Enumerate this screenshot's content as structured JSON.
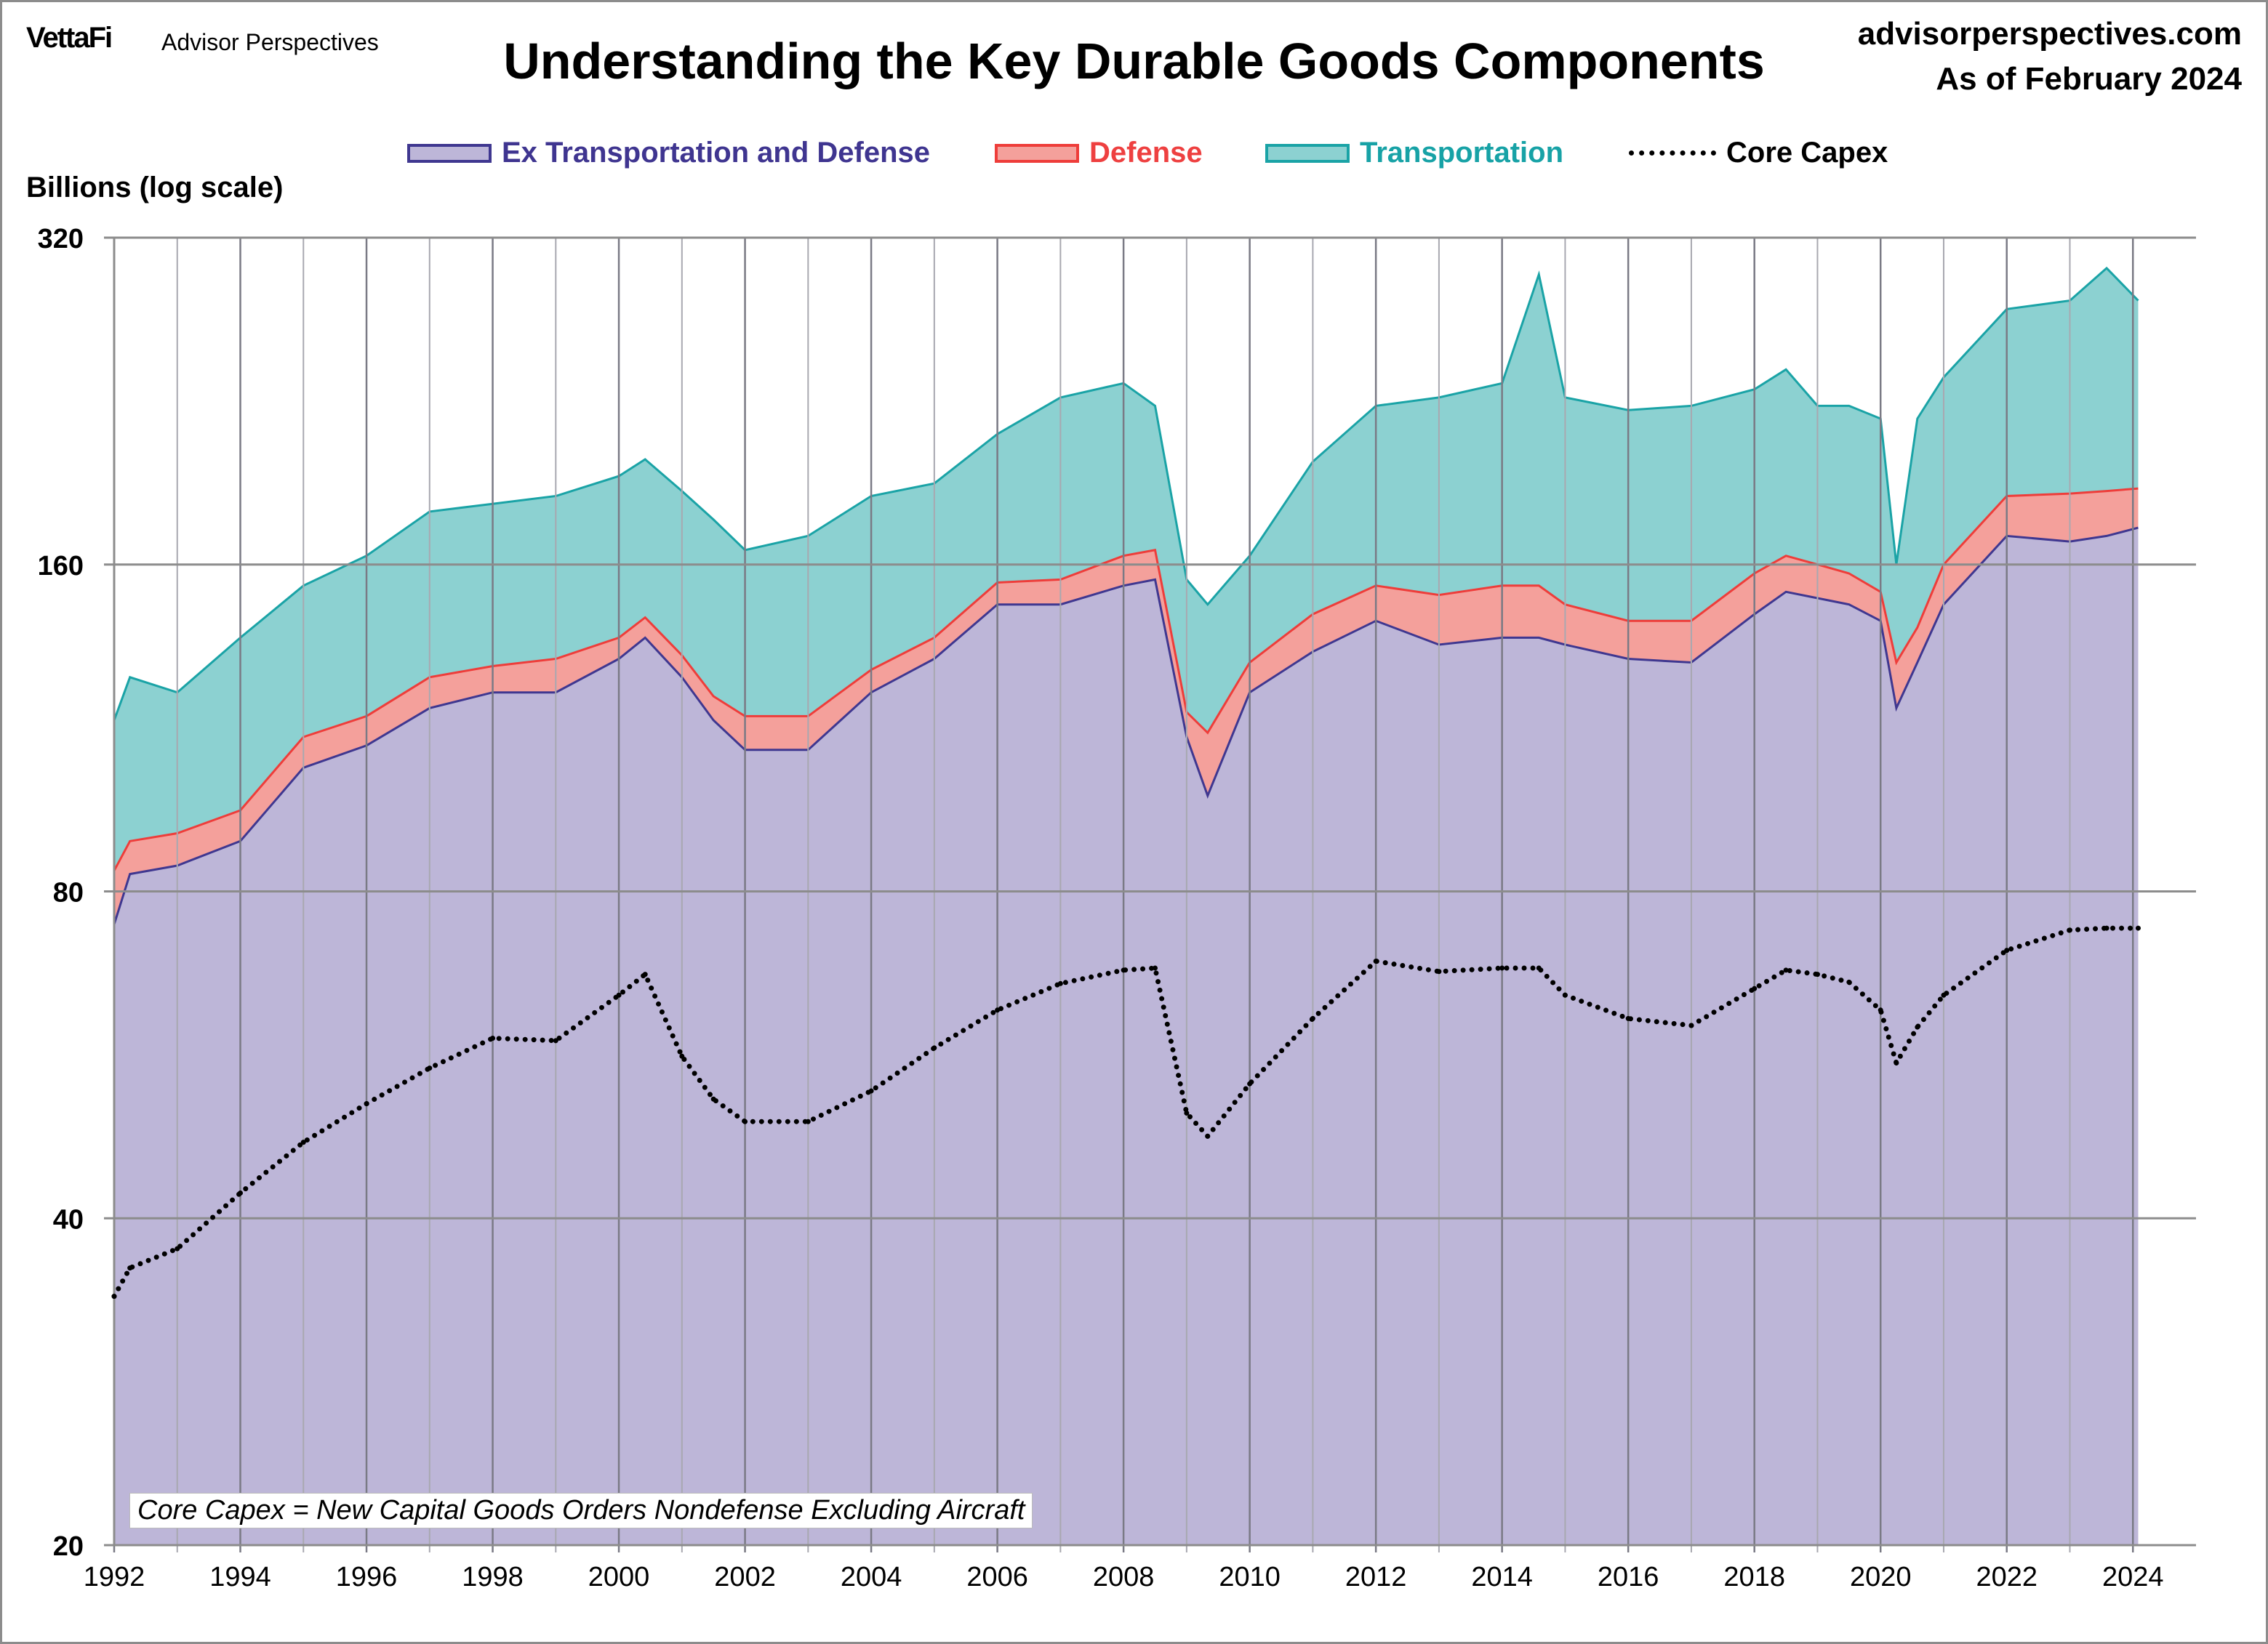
{
  "header": {
    "logo": "VettaFi",
    "logo_sub": "Advisor Perspectives",
    "title": "Understanding the Key Durable Goods Components",
    "site": "advisorperspectives.com",
    "as_of": "As of February 2024"
  },
  "note": "Core Capex = New Capital Goods Orders Nondefense Excluding Aircraft",
  "chart_data": {
    "type": "area",
    "stacked": true,
    "title": "Understanding the Key Durable Goods Components",
    "ylabel": "Billions (log scale)",
    "xlabel": "",
    "y_scale": "log",
    "ylim": [
      20,
      320
    ],
    "xlim": [
      "1992-01",
      "2024-12"
    ],
    "y_ticks": [
      20,
      40,
      80,
      160,
      320
    ],
    "x_ticks": [
      "1992",
      "1994",
      "1996",
      "1998",
      "2000",
      "2002",
      "2004",
      "2006",
      "2008",
      "2010",
      "2012",
      "2014",
      "2016",
      "2018",
      "2020",
      "2022",
      "2024"
    ],
    "grid": true,
    "legend_position": "top",
    "x": [
      "1992-01",
      "1992-04",
      "1993-01",
      "1994-01",
      "1995-01",
      "1996-01",
      "1997-01",
      "1998-01",
      "1999-01",
      "2000-01",
      "2000-06",
      "2001-01",
      "2001-07",
      "2002-01",
      "2003-01",
      "2004-01",
      "2005-01",
      "2006-01",
      "2007-01",
      "2008-01",
      "2008-07",
      "2009-01",
      "2009-05",
      "2010-01",
      "2011-01",
      "2012-01",
      "2013-01",
      "2014-01",
      "2014-08",
      "2015-01",
      "2016-01",
      "2017-01",
      "2018-01",
      "2018-07",
      "2019-01",
      "2019-07",
      "2020-01",
      "2020-04",
      "2020-08",
      "2021-01",
      "2022-01",
      "2023-01",
      "2023-08",
      "2024-02"
    ],
    "series": [
      {
        "name": "Ex Transportation and Defense",
        "kind": "area",
        "fill": "#bdb6d8",
        "stroke": "#3f3790",
        "text_color": "#3f3590",
        "values": [
          74.6,
          83,
          84.5,
          89,
          104,
          109,
          118,
          122,
          122,
          131,
          137,
          126,
          115,
          108,
          108,
          122,
          131,
          147,
          147,
          153,
          155,
          111,
          98,
          122,
          133,
          142,
          135,
          137,
          137,
          135,
          131,
          130,
          144,
          151,
          149,
          147,
          142,
          118,
          130,
          147,
          170,
          168,
          170,
          173
        ]
      },
      {
        "name": "Defense",
        "kind": "area",
        "fill": "#f4a09b",
        "stroke": "#ee3d3a",
        "text_color": "#ee4040",
        "values": [
          9,
          6,
          6,
          6,
          7,
          7,
          8,
          7,
          9,
          6,
          6,
          6,
          6,
          8,
          8,
          6,
          6,
          7,
          8,
          10,
          10,
          6,
          14,
          8,
          11,
          11,
          15,
          16,
          16,
          12,
          11,
          12,
          13,
          12,
          11,
          10,
          9,
          12,
          10,
          13,
          15,
          18,
          17,
          15
        ]
      },
      {
        "name": "Transportation",
        "kind": "area",
        "fill": "#8cd1d1",
        "stroke": "#1aa3a6",
        "text_color": "#17a2a6",
        "values": [
          31.4,
          37,
          31.5,
          42,
          42,
          47,
          53,
          53,
          54,
          56,
          57,
          55,
          55,
          49,
          54,
          57,
          53,
          57,
          73,
          72,
          59,
          38,
          35,
          33,
          55,
          71,
          78,
          82,
          143,
          81,
          80,
          82,
          75,
          79,
          64,
          67,
          67,
          30,
          78,
          78,
          90,
          94,
          113,
          92
        ]
      },
      {
        "name": "Core Capex",
        "kind": "dotted-line",
        "stroke": "#000000",
        "text_color": "#000000",
        "values": [
          33.9,
          36,
          37.5,
          42.2,
          47,
          51,
          55,
          58.6,
          58.3,
          64.2,
          67.1,
          56.4,
          51.5,
          49.1,
          49.1,
          52.4,
          57.4,
          62.2,
          65.8,
          67.7,
          68,
          50,
          47.6,
          53.2,
          61.1,
          69,
          67.5,
          68,
          68,
          64.2,
          61.1,
          60.2,
          65.1,
          67.7,
          67.1,
          66,
          62.2,
          55.6,
          60,
          64.2,
          70.6,
          73.7,
          74,
          74
        ]
      }
    ]
  }
}
